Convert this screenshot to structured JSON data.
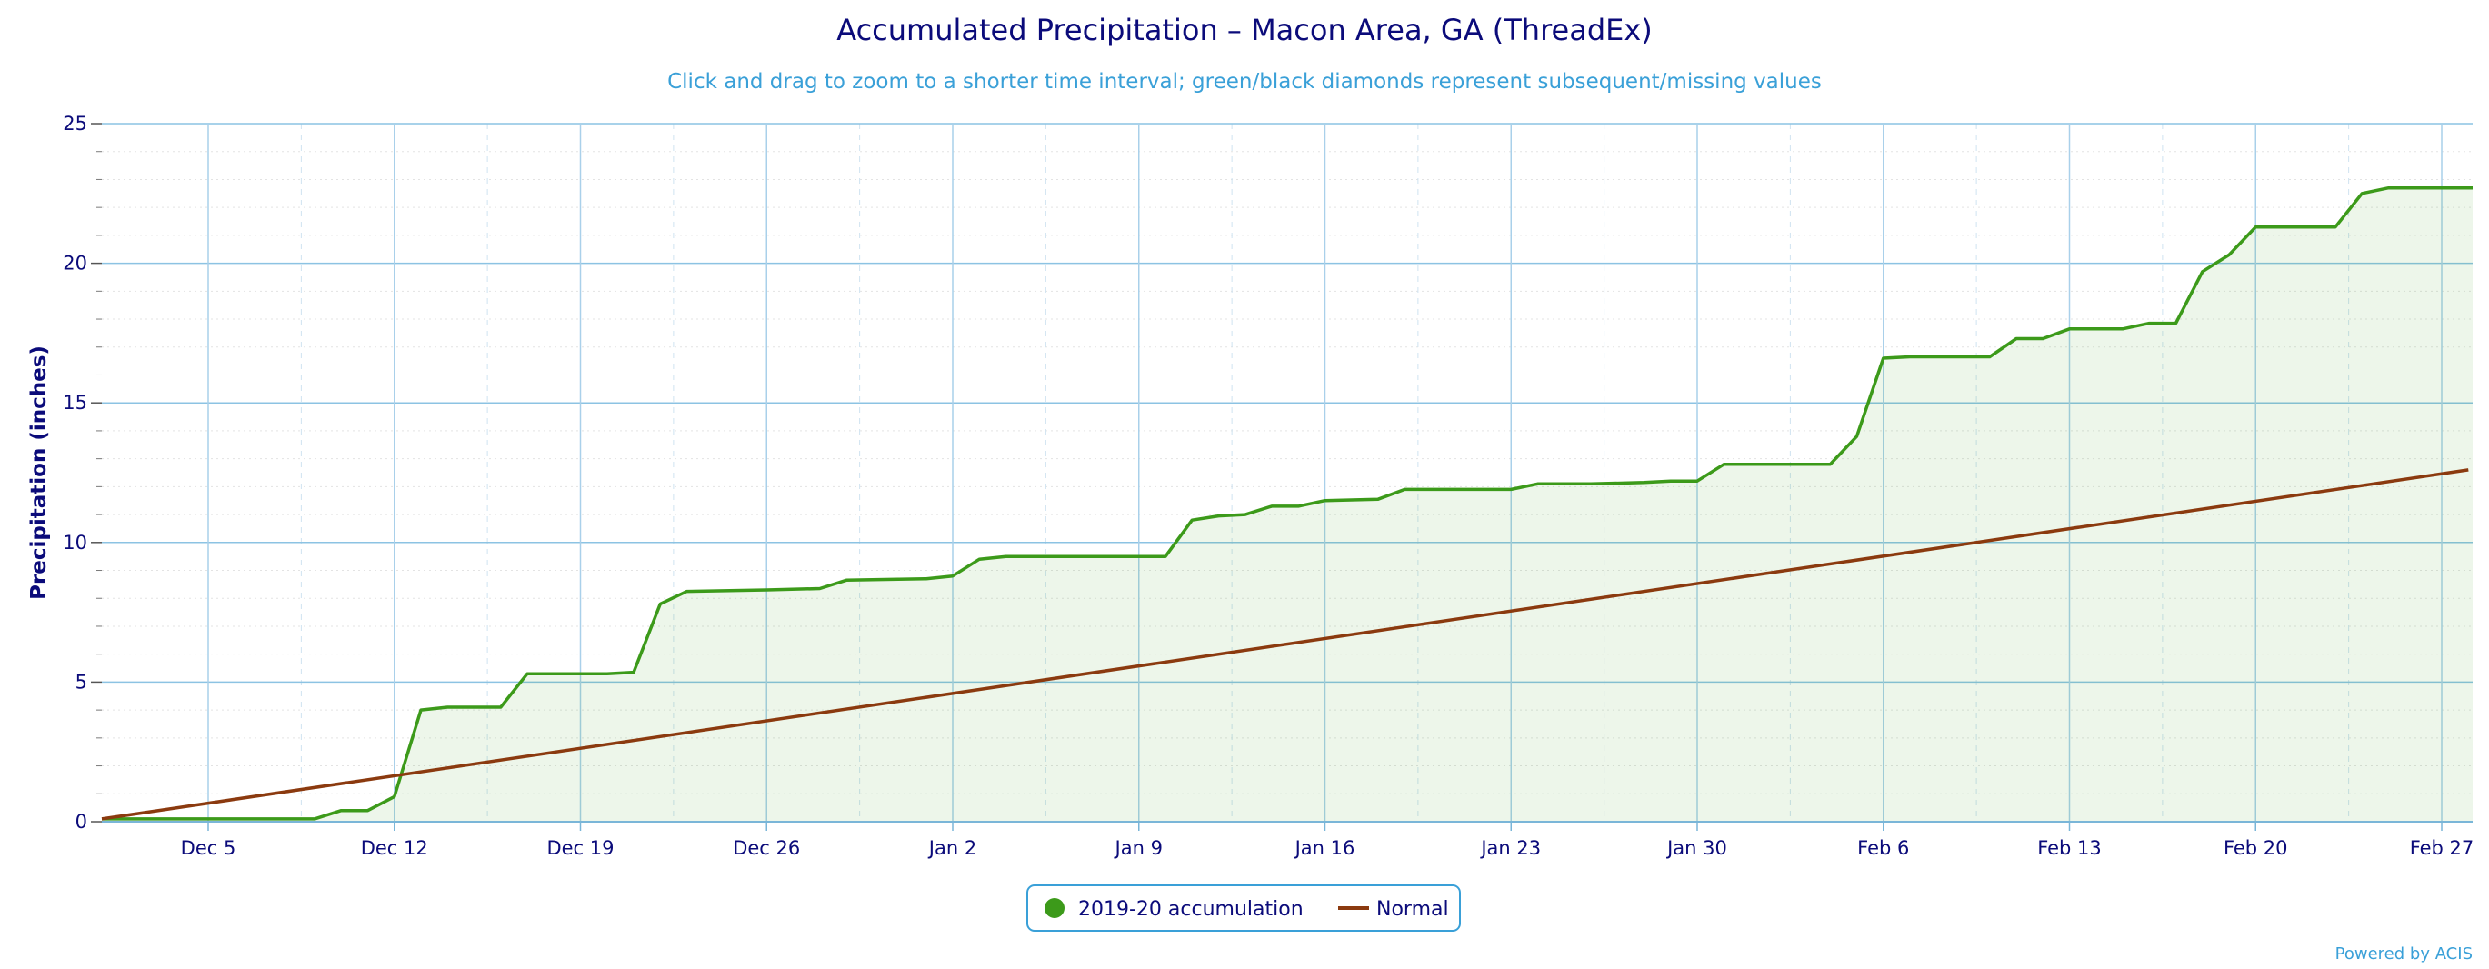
{
  "chart_data": {
    "type": "line",
    "title": "Accumulated Precipitation – Macon Area, GA (ThreadEx)",
    "subtitle": "Click and drag to zoom to a shorter time interval; green/black diamonds represent subsequent/missing values",
    "ylabel": "Precipitation (inches)",
    "xlabel": "",
    "ylim": [
      0,
      25
    ],
    "xlim": [
      0,
      89
    ],
    "y_ticks": [
      "0",
      "5",
      "10",
      "15",
      "20",
      "25"
    ],
    "x_tick_labels": [
      {
        "day": 4,
        "label": "Dec 5"
      },
      {
        "day": 11,
        "label": "Dec 12"
      },
      {
        "day": 18,
        "label": "Dec 19"
      },
      {
        "day": 25,
        "label": "Dec 26"
      },
      {
        "day": 32,
        "label": "Jan 2"
      },
      {
        "day": 39,
        "label": "Jan 9"
      },
      {
        "day": 46,
        "label": "Jan 16"
      },
      {
        "day": 53,
        "label": "Jan 23"
      },
      {
        "day": 60,
        "label": "Jan 30"
      },
      {
        "day": 67,
        "label": "Feb 6"
      },
      {
        "day": 74,
        "label": "Feb 13"
      },
      {
        "day": 81,
        "label": "Feb 20"
      },
      {
        "day": 88,
        "label": "Feb 27"
      }
    ],
    "series": [
      {
        "name": "2019-20 accumulation",
        "color": "#3c9a1a",
        "points": [
          [
            0,
            0.1
          ],
          [
            8,
            0.1
          ],
          [
            9,
            0.4
          ],
          [
            10,
            0.4
          ],
          [
            11,
            0.9
          ],
          [
            12,
            4.0
          ],
          [
            13,
            4.1
          ],
          [
            15,
            4.1
          ],
          [
            16,
            5.3
          ],
          [
            19,
            5.3
          ],
          [
            20,
            5.35
          ],
          [
            21,
            7.8
          ],
          [
            22,
            8.25
          ],
          [
            25,
            8.3
          ],
          [
            27,
            8.35
          ],
          [
            28,
            8.65
          ],
          [
            31,
            8.7
          ],
          [
            32,
            8.8
          ],
          [
            33,
            9.4
          ],
          [
            34,
            9.5
          ],
          [
            40,
            9.5
          ],
          [
            41,
            10.8
          ],
          [
            42,
            10.95
          ],
          [
            43,
            11.0
          ],
          [
            44,
            11.3
          ],
          [
            45,
            11.3
          ],
          [
            46,
            11.5
          ],
          [
            48,
            11.55
          ],
          [
            49,
            11.9
          ],
          [
            53,
            11.9
          ],
          [
            54,
            12.1
          ],
          [
            56,
            12.1
          ],
          [
            58,
            12.15
          ],
          [
            59,
            12.2
          ],
          [
            60,
            12.2
          ],
          [
            61,
            12.8
          ],
          [
            65,
            12.8
          ],
          [
            66,
            13.8
          ],
          [
            67,
            16.6
          ],
          [
            68,
            16.65
          ],
          [
            71,
            16.65
          ],
          [
            72,
            17.3
          ],
          [
            73,
            17.3
          ],
          [
            74,
            17.65
          ],
          [
            76,
            17.65
          ],
          [
            77,
            17.85
          ],
          [
            78,
            17.85
          ],
          [
            79,
            19.7
          ],
          [
            80,
            20.3
          ],
          [
            81,
            21.3
          ],
          [
            84,
            21.3
          ],
          [
            85,
            22.5
          ],
          [
            86,
            22.7
          ],
          [
            90,
            22.7
          ]
        ]
      },
      {
        "name": "Normal",
        "color": "#8b3a0f",
        "points": [
          [
            0,
            0.1
          ],
          [
            89,
            12.6
          ]
        ]
      }
    ],
    "legend_position": "bottom-center",
    "grid": true
  },
  "credit": "Powered by ACIS"
}
